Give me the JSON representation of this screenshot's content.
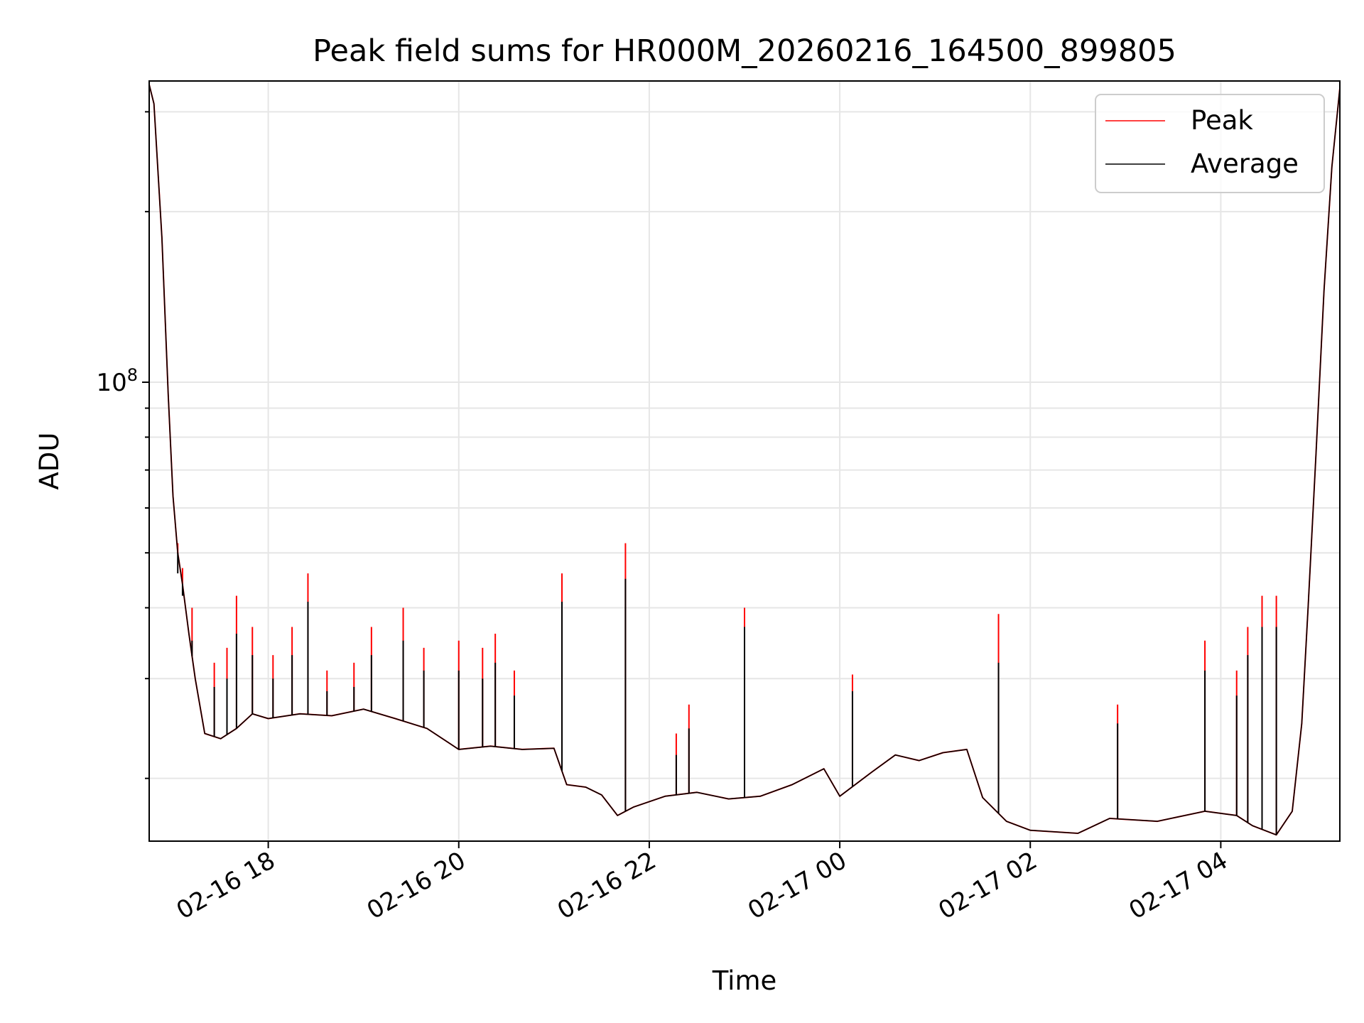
{
  "chart_data": {
    "type": "line",
    "title": "Peak field sums for HR000M_20260216_164500_899805",
    "xlabel": "Time",
    "ylabel": "ADU",
    "y_scale": "log",
    "grid": true,
    "legend_placement": "top-right",
    "x_range": [
      "2026-02-16 16:45",
      "2026-02-17 05:15"
    ],
    "ylim": [
      15500000,
      340000000
    ],
    "x_ticks": [
      {
        "time": "2026-02-16 18:00",
        "label": "02-16 18"
      },
      {
        "time": "2026-02-16 20:00",
        "label": "02-16 20"
      },
      {
        "time": "2026-02-16 22:00",
        "label": "02-16 22"
      },
      {
        "time": "2026-02-17 00:00",
        "label": "02-17 00"
      },
      {
        "time": "2026-02-17 02:00",
        "label": "02-17 02"
      },
      {
        "time": "2026-02-17 04:00",
        "label": "02-17 04"
      }
    ],
    "y_ticks": [
      {
        "value": 100000000,
        "base": "10",
        "exponent": "8"
      }
    ],
    "y_minor_ticks": [
      20000000,
      30000000,
      40000000,
      50000000,
      60000000,
      70000000,
      80000000,
      90000000,
      200000000,
      300000000
    ],
    "series": [
      {
        "name": "Peak",
        "color": "#ff0000",
        "points": [
          [
            "2026-02-16 16:45",
            335000000
          ],
          [
            "2026-02-16 16:48",
            310000000
          ],
          [
            "2026-02-16 16:53",
            180000000
          ],
          [
            "2026-02-16 16:57",
            95000000
          ],
          [
            "2026-02-16 17:00",
            63000000
          ],
          [
            "2026-02-16 17:03",
            50000000
          ],
          [
            "2026-02-16 17:06",
            44000000
          ],
          [
            "2026-02-16 17:10",
            36000000
          ],
          [
            "2026-02-16 17:14",
            30000000
          ],
          [
            "2026-02-16 17:20",
            24000000
          ],
          [
            "2026-02-16 17:30",
            23500000
          ],
          [
            "2026-02-16 17:40",
            24500000
          ],
          [
            "2026-02-16 17:50",
            26000000
          ],
          [
            "2026-02-16 18:00",
            25500000
          ],
          [
            "2026-02-16 18:20",
            26000000
          ],
          [
            "2026-02-16 18:40",
            25800000
          ],
          [
            "2026-02-16 19:00",
            26500000
          ],
          [
            "2026-02-16 19:20",
            25500000
          ],
          [
            "2026-02-16 19:40",
            24500000
          ],
          [
            "2026-02-16 20:00",
            22500000
          ],
          [
            "2026-02-16 20:20",
            22800000
          ],
          [
            "2026-02-16 20:40",
            22500000
          ],
          [
            "2026-02-16 21:00",
            22600000
          ],
          [
            "2026-02-16 21:08",
            19500000
          ],
          [
            "2026-02-16 21:20",
            19300000
          ],
          [
            "2026-02-16 21:30",
            18700000
          ],
          [
            "2026-02-16 21:40",
            17200000
          ],
          [
            "2026-02-16 21:50",
            17800000
          ],
          [
            "2026-02-16 22:10",
            18600000
          ],
          [
            "2026-02-16 22:30",
            18900000
          ],
          [
            "2026-02-16 22:50",
            18400000
          ],
          [
            "2026-02-16 23:10",
            18600000
          ],
          [
            "2026-02-16 23:30",
            19500000
          ],
          [
            "2026-02-16 23:50",
            20800000
          ],
          [
            "2026-02-17 00:00",
            18600000
          ],
          [
            "2026-02-17 00:20",
            20500000
          ],
          [
            "2026-02-17 00:35",
            22000000
          ],
          [
            "2026-02-17 00:50",
            21500000
          ],
          [
            "2026-02-17 01:05",
            22200000
          ],
          [
            "2026-02-17 01:20",
            22500000
          ],
          [
            "2026-02-17 01:30",
            18500000
          ],
          [
            "2026-02-17 01:45",
            16800000
          ],
          [
            "2026-02-17 02:00",
            16200000
          ],
          [
            "2026-02-17 02:30",
            16000000
          ],
          [
            "2026-02-17 02:50",
            17000000
          ],
          [
            "2026-02-17 03:20",
            16800000
          ],
          [
            "2026-02-17 03:50",
            17500000
          ],
          [
            "2026-02-17 04:10",
            17200000
          ],
          [
            "2026-02-17 04:20",
            16500000
          ],
          [
            "2026-02-17 04:35",
            15900000
          ],
          [
            "2026-02-17 04:45",
            17500000
          ],
          [
            "2026-02-17 04:51",
            25000000
          ],
          [
            "2026-02-17 04:55",
            40000000
          ],
          [
            "2026-02-17 05:00",
            75000000
          ],
          [
            "2026-02-17 05:05",
            145000000
          ],
          [
            "2026-02-17 05:10",
            240000000
          ],
          [
            "2026-02-17 05:15",
            330000000
          ]
        ],
        "spikes": [
          [
            "2026-02-16 17:03",
            52000000
          ],
          [
            "2026-02-16 17:06",
            47000000
          ],
          [
            "2026-02-16 17:12",
            40000000
          ],
          [
            "2026-02-16 17:26",
            32000000
          ],
          [
            "2026-02-16 17:34",
            34000000
          ],
          [
            "2026-02-16 17:40",
            42000000
          ],
          [
            "2026-02-16 17:50",
            37000000
          ],
          [
            "2026-02-16 18:03",
            33000000
          ],
          [
            "2026-02-16 18:15",
            37000000
          ],
          [
            "2026-02-16 18:25",
            46000000
          ],
          [
            "2026-02-16 18:37",
            31000000
          ],
          [
            "2026-02-16 18:54",
            32000000
          ],
          [
            "2026-02-16 19:05",
            37000000
          ],
          [
            "2026-02-16 19:25",
            40000000
          ],
          [
            "2026-02-16 19:38",
            34000000
          ],
          [
            "2026-02-16 20:00",
            35000000
          ],
          [
            "2026-02-16 20:15",
            34000000
          ],
          [
            "2026-02-16 20:23",
            36000000
          ],
          [
            "2026-02-16 20:35",
            31000000
          ],
          [
            "2026-02-16 21:05",
            46000000
          ],
          [
            "2026-02-16 21:45",
            52000000
          ],
          [
            "2026-02-16 22:17",
            24000000
          ],
          [
            "2026-02-16 22:25",
            27000000
          ],
          [
            "2026-02-16 23:00",
            40000000
          ],
          [
            "2026-02-17 00:08",
            30500000
          ],
          [
            "2026-02-17 01:40",
            39000000
          ],
          [
            "2026-02-17 02:55",
            27000000
          ],
          [
            "2026-02-17 03:50",
            35000000
          ],
          [
            "2026-02-17 04:10",
            31000000
          ],
          [
            "2026-02-17 04:17",
            37000000
          ],
          [
            "2026-02-17 04:26",
            42000000
          ],
          [
            "2026-02-17 04:35",
            42000000
          ]
        ]
      },
      {
        "name": "Average",
        "color": "#000000",
        "points": [
          [
            "2026-02-16 16:45",
            335000000
          ],
          [
            "2026-02-16 16:48",
            310000000
          ],
          [
            "2026-02-16 16:53",
            180000000
          ],
          [
            "2026-02-16 16:57",
            95000000
          ],
          [
            "2026-02-16 17:00",
            63000000
          ],
          [
            "2026-02-16 17:03",
            50000000
          ],
          [
            "2026-02-16 17:06",
            44000000
          ],
          [
            "2026-02-16 17:10",
            36000000
          ],
          [
            "2026-02-16 17:14",
            30000000
          ],
          [
            "2026-02-16 17:20",
            24000000
          ],
          [
            "2026-02-16 17:30",
            23500000
          ],
          [
            "2026-02-16 17:40",
            24500000
          ],
          [
            "2026-02-16 17:50",
            26000000
          ],
          [
            "2026-02-16 18:00",
            25500000
          ],
          [
            "2026-02-16 18:20",
            26000000
          ],
          [
            "2026-02-16 18:40",
            25800000
          ],
          [
            "2026-02-16 19:00",
            26500000
          ],
          [
            "2026-02-16 19:20",
            25500000
          ],
          [
            "2026-02-16 19:40",
            24500000
          ],
          [
            "2026-02-16 20:00",
            22500000
          ],
          [
            "2026-02-16 20:20",
            22800000
          ],
          [
            "2026-02-16 20:40",
            22500000
          ],
          [
            "2026-02-16 21:00",
            22600000
          ],
          [
            "2026-02-16 21:08",
            19500000
          ],
          [
            "2026-02-16 21:20",
            19300000
          ],
          [
            "2026-02-16 21:30",
            18700000
          ],
          [
            "2026-02-16 21:40",
            17200000
          ],
          [
            "2026-02-16 21:50",
            17800000
          ],
          [
            "2026-02-16 22:10",
            18600000
          ],
          [
            "2026-02-16 22:30",
            18900000
          ],
          [
            "2026-02-16 22:50",
            18400000
          ],
          [
            "2026-02-16 23:10",
            18600000
          ],
          [
            "2026-02-16 23:30",
            19500000
          ],
          [
            "2026-02-16 23:50",
            20800000
          ],
          [
            "2026-02-17 00:00",
            18600000
          ],
          [
            "2026-02-17 00:20",
            20500000
          ],
          [
            "2026-02-17 00:35",
            22000000
          ],
          [
            "2026-02-17 00:50",
            21500000
          ],
          [
            "2026-02-17 01:05",
            22200000
          ],
          [
            "2026-02-17 01:20",
            22500000
          ],
          [
            "2026-02-17 01:30",
            18500000
          ],
          [
            "2026-02-17 01:45",
            16800000
          ],
          [
            "2026-02-17 02:00",
            16200000
          ],
          [
            "2026-02-17 02:30",
            16000000
          ],
          [
            "2026-02-17 02:50",
            17000000
          ],
          [
            "2026-02-17 03:20",
            16800000
          ],
          [
            "2026-02-17 03:50",
            17500000
          ],
          [
            "2026-02-17 04:10",
            17200000
          ],
          [
            "2026-02-17 04:20",
            16500000
          ],
          [
            "2026-02-17 04:35",
            15900000
          ],
          [
            "2026-02-17 04:45",
            17500000
          ],
          [
            "2026-02-17 04:51",
            25000000
          ],
          [
            "2026-02-17 04:55",
            40000000
          ],
          [
            "2026-02-17 05:00",
            75000000
          ],
          [
            "2026-02-17 05:05",
            145000000
          ],
          [
            "2026-02-17 05:10",
            240000000
          ],
          [
            "2026-02-17 05:15",
            330000000
          ]
        ],
        "spikes": [
          [
            "2026-02-16 17:03",
            46000000
          ],
          [
            "2026-02-16 17:06",
            42000000
          ],
          [
            "2026-02-16 17:12",
            35000000
          ],
          [
            "2026-02-16 17:26",
            29000000
          ],
          [
            "2026-02-16 17:34",
            30000000
          ],
          [
            "2026-02-16 17:40",
            36000000
          ],
          [
            "2026-02-16 17:50",
            33000000
          ],
          [
            "2026-02-16 18:03",
            30000000
          ],
          [
            "2026-02-16 18:15",
            33000000
          ],
          [
            "2026-02-16 18:25",
            41000000
          ],
          [
            "2026-02-16 18:37",
            28500000
          ],
          [
            "2026-02-16 18:54",
            29000000
          ],
          [
            "2026-02-16 19:05",
            33000000
          ],
          [
            "2026-02-16 19:25",
            35000000
          ],
          [
            "2026-02-16 19:38",
            31000000
          ],
          [
            "2026-02-16 20:00",
            31000000
          ],
          [
            "2026-02-16 20:15",
            30000000
          ],
          [
            "2026-02-16 20:23",
            32000000
          ],
          [
            "2026-02-16 20:35",
            28000000
          ],
          [
            "2026-02-16 21:05",
            41000000
          ],
          [
            "2026-02-16 21:45",
            45000000
          ],
          [
            "2026-02-16 22:17",
            22000000
          ],
          [
            "2026-02-16 22:25",
            24500000
          ],
          [
            "2026-02-16 23:00",
            37000000
          ],
          [
            "2026-02-17 00:08",
            28500000
          ],
          [
            "2026-02-17 01:40",
            32000000
          ],
          [
            "2026-02-17 02:55",
            25000000
          ],
          [
            "2026-02-17 03:50",
            31000000
          ],
          [
            "2026-02-17 04:10",
            28000000
          ],
          [
            "2026-02-17 04:17",
            33000000
          ],
          [
            "2026-02-17 04:26",
            37000000
          ],
          [
            "2026-02-17 04:35",
            37000000
          ]
        ]
      }
    ]
  }
}
